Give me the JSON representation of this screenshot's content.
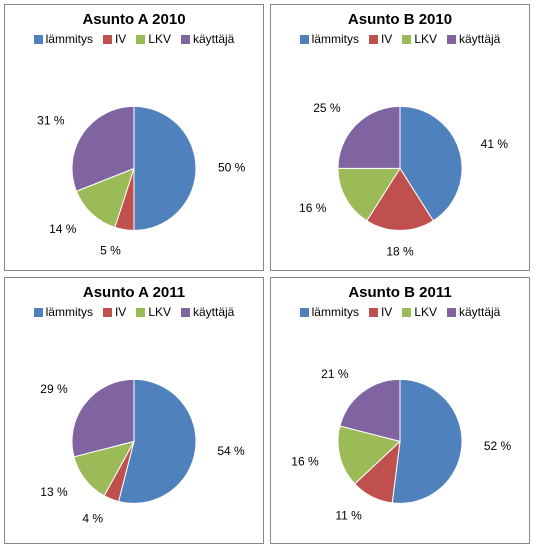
{
  "colors": {
    "lammitys": "#4f81bd",
    "iv": "#c0504d",
    "lkv": "#9bbb59",
    "kayttaja": "#8064a2",
    "border": "#888888",
    "bg": "#ffffff",
    "text": "#000000"
  },
  "legend": {
    "lammitys": "lämmitys",
    "iv": "IV",
    "lkv": "LKV",
    "kayttaja": "käyttäjä"
  },
  "fonts": {
    "title_size_pt": 15,
    "legend_size_pt": 12,
    "label_size_pt": 12,
    "family": "Arial, Helvetica, sans-serif"
  },
  "panels": [
    {
      "id": "a2010",
      "title": "Asunto A 2010",
      "type": "pie",
      "slices": [
        {
          "key": "lammitys",
          "value": 50,
          "label": "50 %"
        },
        {
          "key": "iv",
          "value": 5,
          "label": "5 %"
        },
        {
          "key": "lkv",
          "value": 14,
          "label": "14 %"
        },
        {
          "key": "kayttaja",
          "value": 31,
          "label": "31 %"
        }
      ]
    },
    {
      "id": "b2010",
      "title": "Asunto B 2010",
      "type": "pie",
      "slices": [
        {
          "key": "lammitys",
          "value": 41,
          "label": "41 %"
        },
        {
          "key": "iv",
          "value": 18,
          "label": "18 %"
        },
        {
          "key": "lkv",
          "value": 16,
          "label": "16 %"
        },
        {
          "key": "kayttaja",
          "value": 25,
          "label": "25 %"
        }
      ]
    },
    {
      "id": "a2011",
      "title": "Asunto A 2011",
      "type": "pie",
      "slices": [
        {
          "key": "lammitys",
          "value": 54,
          "label": "54 %"
        },
        {
          "key": "iv",
          "value": 4,
          "label": "4 %"
        },
        {
          "key": "lkv",
          "value": 13,
          "label": "13 %"
        },
        {
          "key": "kayttaja",
          "value": 29,
          "label": "29 %"
        }
      ]
    },
    {
      "id": "b2011",
      "title": "Asunto B 2011",
      "type": "pie",
      "slices": [
        {
          "key": "lammitys",
          "value": 52,
          "label": "52 %"
        },
        {
          "key": "iv",
          "value": 11,
          "label": "11 %"
        },
        {
          "key": "lkv",
          "value": 16,
          "label": "16 %"
        },
        {
          "key": "kayttaja",
          "value": 21,
          "label": "21 %"
        }
      ]
    }
  ]
}
